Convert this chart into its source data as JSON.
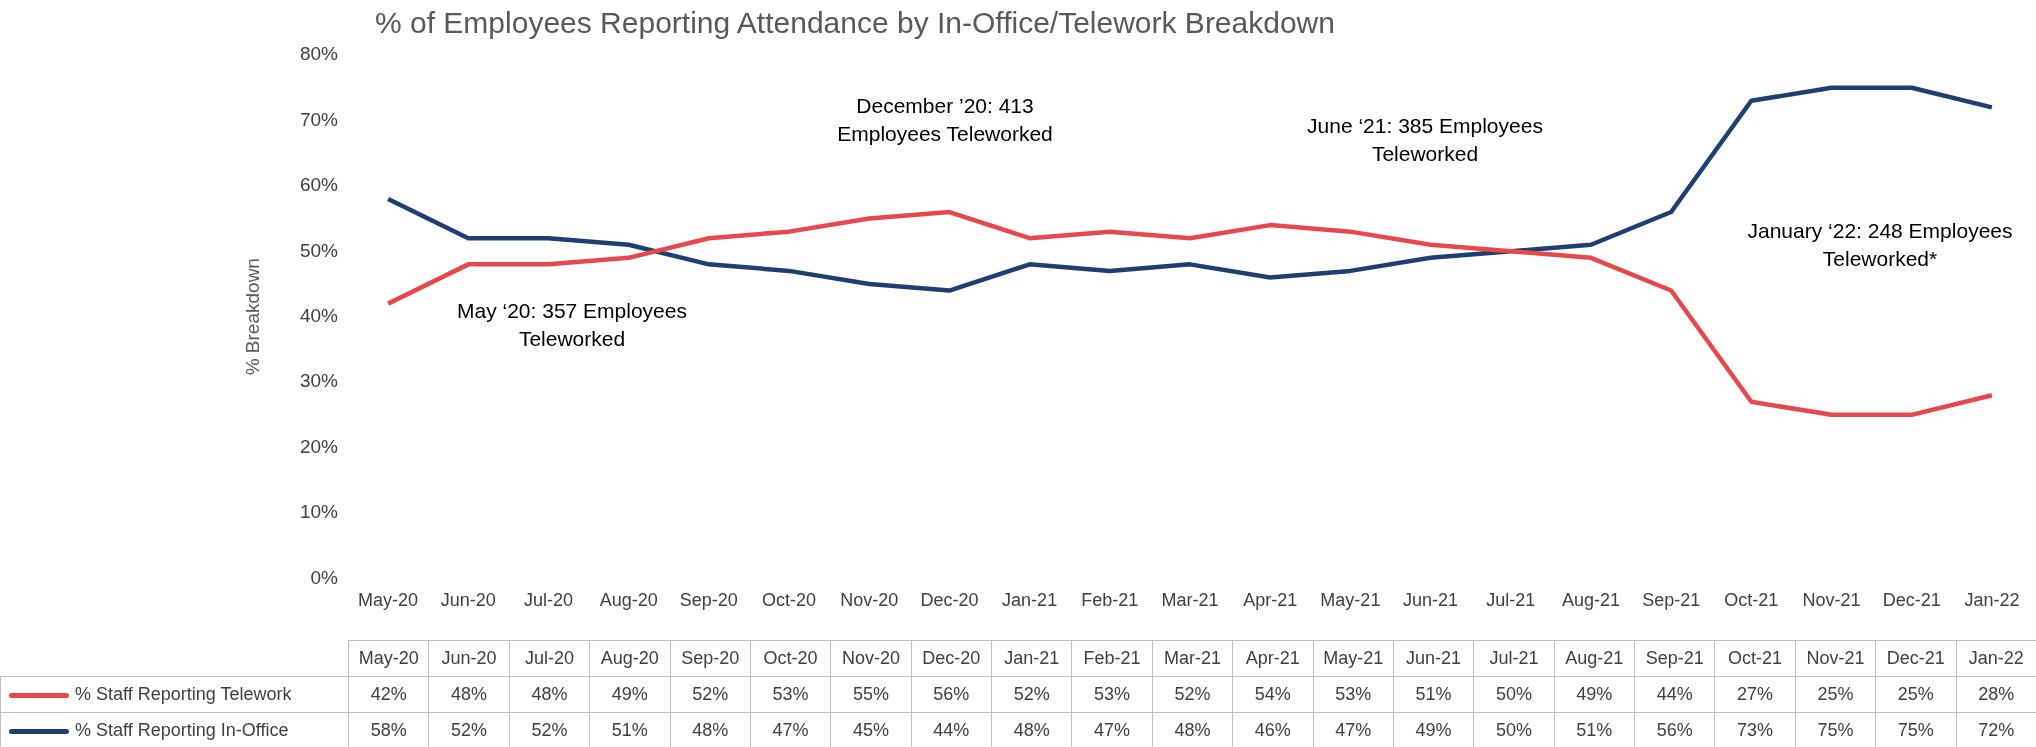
{
  "chart_data": {
    "type": "line",
    "title": "% of Employees Reporting Attendance by In-Office/Telework Breakdown",
    "ylabel": "% Breakdown",
    "categories": [
      "May-20",
      "Jun-20",
      "Jul-20",
      "Aug-20",
      "Sep-20",
      "Oct-20",
      "Nov-20",
      "Dec-20",
      "Jan-21",
      "Feb-21",
      "Mar-21",
      "Apr-21",
      "May-21",
      "Jun-21",
      "Jul-21",
      "Aug-21",
      "Sep-21",
      "Oct-21",
      "Nov-21",
      "Dec-21",
      "Jan-22"
    ],
    "series": [
      {
        "name": "% Staff Reporting Telework",
        "color": "#e8474c",
        "values": [
          42,
          48,
          48,
          49,
          52,
          53,
          55,
          56,
          52,
          53,
          52,
          54,
          53,
          51,
          50,
          49,
          44,
          27,
          25,
          25,
          28
        ],
        "value_labels": [
          "42%",
          "48%",
          "48%",
          "49%",
          "52%",
          "53%",
          "55%",
          "56%",
          "52%",
          "53%",
          "52%",
          "54%",
          "53%",
          "51%",
          "50%",
          "49%",
          "44%",
          "27%",
          "25%",
          "25%",
          "28%"
        ]
      },
      {
        "name": "% Staff Reporting In-Office",
        "color": "#1f3f74",
        "values": [
          58,
          52,
          52,
          51,
          48,
          47,
          45,
          44,
          48,
          47,
          48,
          46,
          47,
          49,
          50,
          51,
          56,
          73,
          75,
          75,
          72
        ],
        "value_labels": [
          "58%",
          "52%",
          "52%",
          "51%",
          "48%",
          "47%",
          "45%",
          "44%",
          "48%",
          "47%",
          "48%",
          "46%",
          "47%",
          "49%",
          "50%",
          "51%",
          "56%",
          "73%",
          "75%",
          "75%",
          "72%"
        ]
      }
    ],
    "ylim": [
      0,
      80
    ],
    "yticks": [
      {
        "value": 0,
        "label": "0%"
      },
      {
        "value": 10,
        "label": "10%"
      },
      {
        "value": 20,
        "label": "20%"
      },
      {
        "value": 30,
        "label": "30%"
      },
      {
        "value": 40,
        "label": "40%"
      },
      {
        "value": 50,
        "label": "50%"
      },
      {
        "value": 60,
        "label": "60%"
      },
      {
        "value": 70,
        "label": "70%"
      },
      {
        "value": 80,
        "label": "80%"
      }
    ],
    "annotations": [
      "May ‘20: 357 Employees\nTeleworked",
      "December ’20: 413\nEmployees Teleworked",
      "June ‘21: 385 Employees\nTeleworked",
      "January ‘22: 248 Employees\nTeleworked*"
    ],
    "grid": false,
    "legend": "bottom",
    "marker": "none",
    "line_style": "solid"
  }
}
